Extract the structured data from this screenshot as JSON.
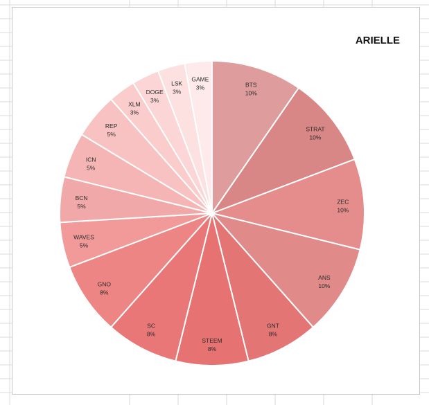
{
  "chart_data": {
    "type": "pie",
    "title": "ARIELLE",
    "start_angle_deg": 0,
    "direction": "clockwise",
    "legend": "none",
    "slices": [
      {
        "label": "BTS",
        "value": 10,
        "pct_label": "10%",
        "color": "#de9c9c"
      },
      {
        "label": "STRAT",
        "value": 10,
        "pct_label": "10%",
        "color": "#d98686"
      },
      {
        "label": "ZEC",
        "value": 10,
        "pct_label": "10%",
        "color": "#e58c8c"
      },
      {
        "label": "ANS",
        "value": 10,
        "pct_label": "10%",
        "color": "#e08a8a"
      },
      {
        "label": "GNT",
        "value": 8,
        "pct_label": "8%",
        "color": "#e47575"
      },
      {
        "label": "STEEM",
        "value": 8,
        "pct_label": "8%",
        "color": "#e77272"
      },
      {
        "label": "SC",
        "value": 8,
        "pct_label": "8%",
        "color": "#e97777"
      },
      {
        "label": "GNO",
        "value": 8,
        "pct_label": "8%",
        "color": "#ee8585"
      },
      {
        "label": "WAVES",
        "value": 5,
        "pct_label": "5%",
        "color": "#f29a9a"
      },
      {
        "label": "BCN",
        "value": 5,
        "pct_label": "5%",
        "color": "#f1a8a8"
      },
      {
        "label": "ICN",
        "value": 5,
        "pct_label": "5%",
        "color": "#f6b5b5"
      },
      {
        "label": "REP",
        "value": 5,
        "pct_label": "5%",
        "color": "#f8c2c2"
      },
      {
        "label": "XLM",
        "value": 3,
        "pct_label": "3%",
        "color": "#fbcccc"
      },
      {
        "label": "DOGE",
        "value": 3,
        "pct_label": "3%",
        "color": "#fcd6d6"
      },
      {
        "label": "LSK",
        "value": 3,
        "pct_label": "3%",
        "color": "#fde0e0"
      },
      {
        "label": "GAME",
        "value": 3,
        "pct_label": "3%",
        "color": "#feeaea"
      }
    ]
  }
}
